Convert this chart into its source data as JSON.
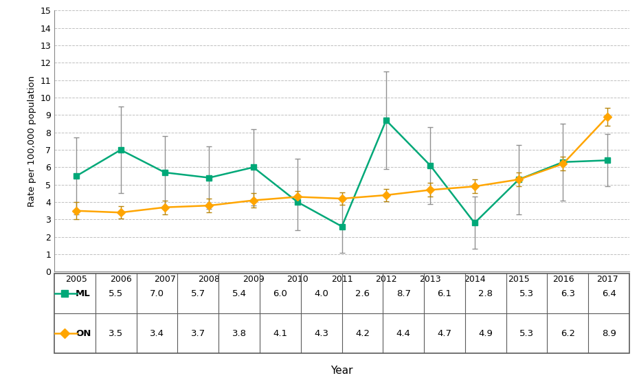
{
  "years": [
    2005,
    2006,
    2007,
    2008,
    2009,
    2010,
    2011,
    2012,
    2013,
    2014,
    2015,
    2016,
    2017
  ],
  "ML_values": [
    5.5,
    7.0,
    5.7,
    5.4,
    6.0,
    4.0,
    2.6,
    8.7,
    6.1,
    2.8,
    5.3,
    6.3,
    6.4
  ],
  "ON_values": [
    3.5,
    3.4,
    3.7,
    3.8,
    4.1,
    4.3,
    4.2,
    4.4,
    4.7,
    4.9,
    5.3,
    6.2,
    8.9
  ],
  "ML_err_upper": [
    2.2,
    2.5,
    2.1,
    1.8,
    2.2,
    2.5,
    1.5,
    2.8,
    2.2,
    1.5,
    2.0,
    2.2,
    1.5
  ],
  "ML_err_lower": [
    2.2,
    2.5,
    2.1,
    1.8,
    2.2,
    1.6,
    1.5,
    2.8,
    2.2,
    1.5,
    2.0,
    2.2,
    1.5
  ],
  "ON_err_upper": [
    0.5,
    0.35,
    0.4,
    0.4,
    0.4,
    0.35,
    0.35,
    0.35,
    0.4,
    0.4,
    0.4,
    0.4,
    0.5
  ],
  "ON_err_lower": [
    0.5,
    0.35,
    0.4,
    0.4,
    0.4,
    0.35,
    0.35,
    0.35,
    0.4,
    0.4,
    0.4,
    0.4,
    0.5
  ],
  "ML_color": "#00A878",
  "ON_color": "#FFA500",
  "ML_label": "ML",
  "ON_label": "ON",
  "ylabel": "Rate per 100,000 population",
  "xlabel": "Year",
  "ylim": [
    0,
    15
  ],
  "yticks": [
    0,
    1,
    2,
    3,
    4,
    5,
    6,
    7,
    8,
    9,
    10,
    11,
    12,
    13,
    14,
    15
  ],
  "grid_color": "#BEBEBE",
  "table_border_color": "#5A5A5A",
  "ecolor_ML": "#909090",
  "ecolor_ON": "#B8860B"
}
